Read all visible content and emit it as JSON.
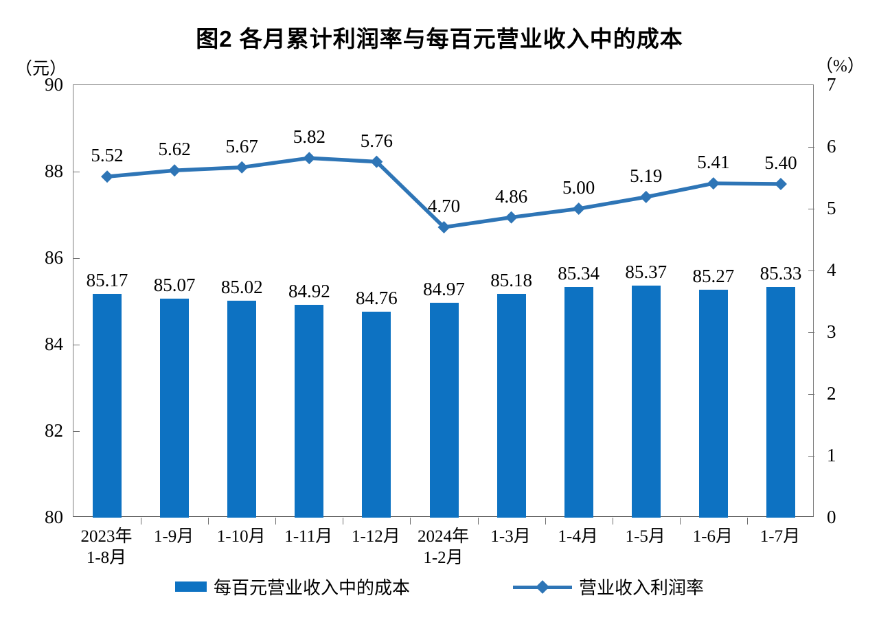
{
  "title": "图2  各月累计利润率与每百元营业收入中的成本",
  "left_axis": {
    "unit": "（元）",
    "min": 80,
    "max": 90,
    "ticks": [
      90,
      88,
      86,
      84,
      82,
      80
    ]
  },
  "right_axis": {
    "unit": "（%）",
    "min": 0,
    "max": 7,
    "ticks": [
      7,
      6,
      5,
      4,
      3,
      2,
      1,
      0
    ]
  },
  "chart_data": {
    "type": "bar",
    "subtype": "bar-line-combo",
    "grid": false,
    "legend_position": "bottom",
    "categories": [
      [
        "2023年",
        "1-8月"
      ],
      [
        "1-9月"
      ],
      [
        "1-10月"
      ],
      [
        "1-11月"
      ],
      [
        "1-12月"
      ],
      [
        "2024年",
        "1-2月"
      ],
      [
        "1-3月"
      ],
      [
        "1-4月"
      ],
      [
        "1-5月"
      ],
      [
        "1-6月"
      ],
      [
        "1-7月"
      ]
    ],
    "series": [
      {
        "name": "每百元营业收入中的成本",
        "type": "bar",
        "axis": "left",
        "color": "#0d72c2",
        "values": [
          85.17,
          85.07,
          85.02,
          84.92,
          84.76,
          84.97,
          85.18,
          85.34,
          85.37,
          85.27,
          85.33
        ],
        "labels": [
          "85.17",
          "85.07",
          "85.02",
          "84.92",
          "84.76",
          "84.97",
          "85.18",
          "85.34",
          "85.37",
          "85.27",
          "85.33"
        ]
      },
      {
        "name": "营业收入利润率",
        "type": "line",
        "axis": "right",
        "color": "#2e75b6",
        "values": [
          5.52,
          5.62,
          5.67,
          5.82,
          5.76,
          4.7,
          4.86,
          5.0,
          5.19,
          5.41,
          5.4
        ],
        "labels": [
          "5.52",
          "5.62",
          "5.67",
          "5.82",
          "5.76",
          "4.70",
          "4.86",
          "5.00",
          "5.19",
          "5.41",
          "5.40"
        ]
      }
    ],
    "left_ylim": [
      80,
      90
    ],
    "right_ylim": [
      0,
      7
    ]
  },
  "legend": {
    "bar_label": "每百元营业收入中的成本",
    "line_label": "营业收入利润率"
  },
  "colors": {
    "bar": "#0d72c2",
    "line": "#2e75b6",
    "frame": "#7a7a7a"
  }
}
